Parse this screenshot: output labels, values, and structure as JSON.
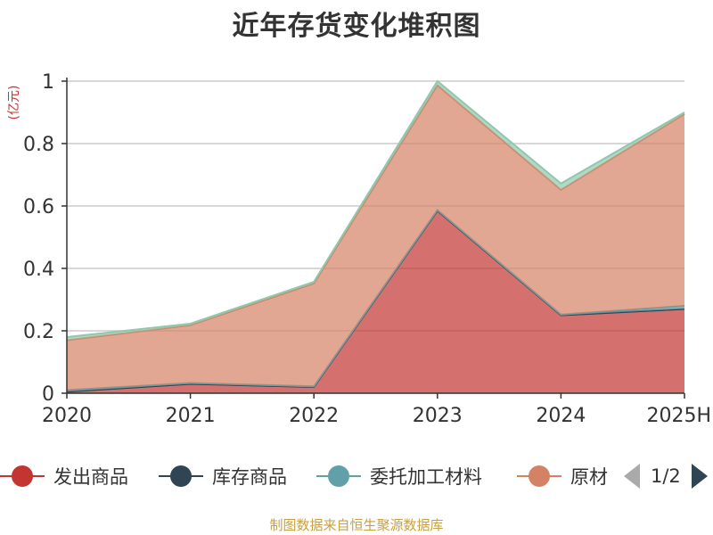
{
  "title": "近年存货变化堆积图",
  "source": "制图数据来自恒生聚源数据库",
  "colors": {
    "发出商品": "#c23531",
    "库存商品": "#2f4554",
    "委托加工材料": "#61a0a8",
    "原材料": "#d48265",
    "top_band": "#91c7ae"
  },
  "legend": {
    "items": [
      "发出商品",
      "库存商品",
      "委托加工材料",
      "原材"
    ],
    "page": "1/2"
  },
  "chart_data": {
    "type": "area",
    "stacked": true,
    "x": [
      "2020",
      "2021",
      "2022",
      "2023",
      "2024",
      "2025H"
    ],
    "yunit": "(亿元)",
    "ylim": [
      0,
      1
    ],
    "yticks": [
      "0",
      "0.2",
      "0.4",
      "0.6",
      "0.8",
      "1"
    ],
    "grid": true,
    "series": [
      {
        "name": "发出商品",
        "values": [
          0.005,
          0.03,
          0.02,
          0.585,
          0.25,
          0.27
        ]
      },
      {
        "name": "库存商品",
        "values": [
          0.0,
          0.0,
          0.0,
          0.0,
          0.0,
          0.0
        ]
      },
      {
        "name": "委托加工材料",
        "values": [
          0.005,
          0.003,
          0.002,
          0.002,
          0.002,
          0.01
        ]
      },
      {
        "name": "原材料",
        "values": [
          0.16,
          0.185,
          0.33,
          0.4,
          0.4,
          0.615
        ]
      },
      {
        "name": "",
        "values": [
          0.01,
          0.005,
          0.005,
          0.013,
          0.02,
          0.005
        ]
      }
    ]
  }
}
